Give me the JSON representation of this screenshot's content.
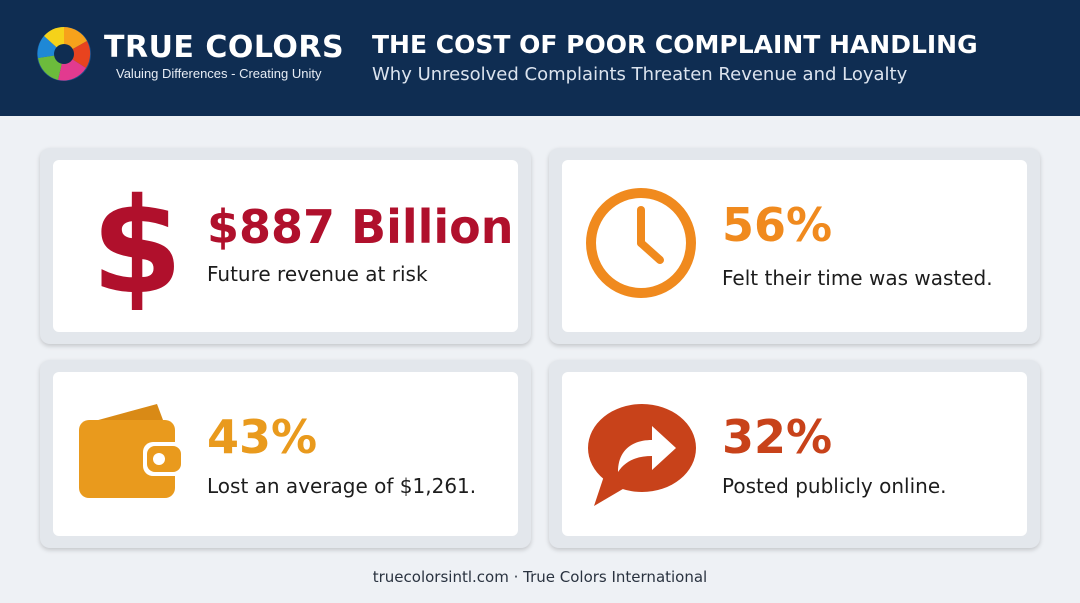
{
  "header": {
    "brand_name": "TRUE COLORS",
    "brand_tagline": "Valuing Differences - Creating Unity",
    "title": "THE COST OF POOR COMPLAINT HANDLING",
    "subtitle": "Why Unresolved Complaints Threaten Revenue and Loyalty",
    "logo_icon": "multicolor-swirl-logo-icon",
    "background_color": "#0f2d52"
  },
  "stats": [
    {
      "value": "$887 Billion",
      "label": "Future revenue at risk",
      "icon": "dollar-sign-icon",
      "color": "#b0102c"
    },
    {
      "value": "56%",
      "label": "Felt their time was wasted.",
      "icon": "clock-icon",
      "color": "#f08a1e"
    },
    {
      "value": "43%",
      "label": "Lost an average of $1,261.",
      "icon": "wallet-icon",
      "color": "#e99a1d"
    },
    {
      "value": "32%",
      "label": "Posted publicly online.",
      "icon": "share-speech-bubble-icon",
      "color": "#c8421a"
    }
  ],
  "footer": {
    "text": "truecolorsintl.com · True Colors International"
  }
}
